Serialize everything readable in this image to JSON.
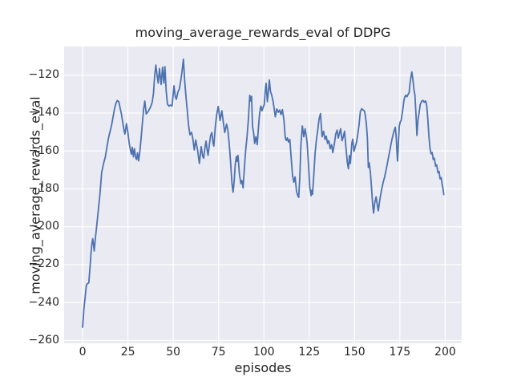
{
  "chart_data": {
    "type": "line",
    "title": "moving_average_rewards_eval of DDPG",
    "xlabel": "episodes",
    "ylabel": "moving_average_rewards_eval",
    "legend_position": "none",
    "grid": true,
    "xlim": [
      -10.2,
      209.1
    ],
    "ylim": [
      -261.5,
      -104.9
    ],
    "x_ticks": [
      0,
      25,
      50,
      75,
      100,
      125,
      150,
      175,
      200
    ],
    "x_tick_labels": [
      "0",
      "25",
      "50",
      "75",
      "100",
      "125",
      "150",
      "175",
      "200"
    ],
    "y_ticks": [
      -260,
      -240,
      -220,
      -200,
      -180,
      -160,
      -140,
      -120
    ],
    "y_tick_labels": [
      "−260",
      "−240",
      "−220",
      "−200",
      "−180",
      "−160",
      "−140",
      "−120"
    ],
    "styles": {
      "axes_background": "#eaeaf2",
      "grid_color": "#ffffff",
      "line_color": "#4c72b0",
      "text_color": "#262626",
      "figure_background": "#ffffff",
      "line_width": 1.8
    },
    "series": [
      {
        "name": "moving_average_rewards_eval",
        "points": [
          [
            0,
            -253
          ],
          [
            0.7,
            -243.5
          ],
          [
            1.3,
            -238
          ],
          [
            2,
            -231.5
          ],
          [
            2.4,
            -230.2
          ],
          [
            3.4,
            -229.6
          ],
          [
            4,
            -222.5
          ],
          [
            4.6,
            -214.5
          ],
          [
            5.1,
            -209
          ],
          [
            5.6,
            -206.3
          ],
          [
            6.4,
            -212.8
          ],
          [
            7.1,
            -205.5
          ],
          [
            8,
            -197.5
          ],
          [
            9,
            -188
          ],
          [
            9.5,
            -183.5
          ],
          [
            10.5,
            -171.5
          ],
          [
            11.5,
            -166.8
          ],
          [
            12.5,
            -163.3
          ],
          [
            13.4,
            -158
          ],
          [
            14.2,
            -153.5
          ],
          [
            15,
            -150.3
          ],
          [
            16,
            -146.3
          ],
          [
            17,
            -141
          ],
          [
            17.7,
            -137.3
          ],
          [
            18.4,
            -134.8
          ],
          [
            19.1,
            -133.4
          ],
          [
            20,
            -134.1
          ],
          [
            20.6,
            -137
          ],
          [
            21.4,
            -140.5
          ],
          [
            22.1,
            -144.7
          ],
          [
            22.8,
            -148.9
          ],
          [
            23.3,
            -151.1
          ],
          [
            24.2,
            -145.6
          ],
          [
            25,
            -150.4
          ],
          [
            25.7,
            -156
          ],
          [
            26.4,
            -159.6
          ],
          [
            26.9,
            -161.7
          ],
          [
            27.4,
            -158.1
          ],
          [
            28,
            -163.1
          ],
          [
            28.6,
            -158.8
          ],
          [
            29.3,
            -163.8
          ],
          [
            29.8,
            -164.5
          ],
          [
            30.3,
            -161
          ],
          [
            30.9,
            -165.2
          ],
          [
            31.5,
            -161
          ],
          [
            32.2,
            -153.9
          ],
          [
            32.9,
            -146.1
          ],
          [
            33.6,
            -138.4
          ],
          [
            34.3,
            -133.7
          ],
          [
            35.1,
            -140.5
          ],
          [
            36.2,
            -139.1
          ],
          [
            37,
            -137.7
          ],
          [
            37.7,
            -136.3
          ],
          [
            38.4,
            -134.2
          ],
          [
            39.1,
            -129.5
          ],
          [
            39.7,
            -121
          ],
          [
            40.4,
            -114.7
          ],
          [
            41,
            -119.5
          ],
          [
            41.7,
            -124.2
          ],
          [
            42.4,
            -116.5
          ],
          [
            43.3,
            -124.9
          ],
          [
            44.1,
            -115.8
          ],
          [
            44.8,
            -124.2
          ],
          [
            45.4,
            -115.5
          ],
          [
            46.1,
            -128.5
          ],
          [
            46.8,
            -135.3
          ],
          [
            47.6,
            -136.3
          ],
          [
            48.5,
            -135.8
          ],
          [
            49.3,
            -136.3
          ],
          [
            50,
            -129.9
          ],
          [
            50.4,
            -125.6
          ],
          [
            51.1,
            -131.3
          ],
          [
            51.7,
            -132.7
          ],
          [
            52.6,
            -128.8
          ],
          [
            53.4,
            -127.1
          ],
          [
            54.2,
            -122.5
          ],
          [
            54.9,
            -117.5
          ],
          [
            55.6,
            -111.6
          ],
          [
            56.3,
            -123
          ],
          [
            57,
            -131.3
          ],
          [
            57.7,
            -138.4
          ],
          [
            58.4,
            -146.1
          ],
          [
            59.2,
            -151.5
          ],
          [
            60.1,
            -150.2
          ],
          [
            60.8,
            -153.5
          ],
          [
            61.6,
            -159.5
          ],
          [
            62.4,
            -154.2
          ],
          [
            63.4,
            -159.5
          ],
          [
            64.4,
            -166.6
          ],
          [
            65.4,
            -157.7
          ],
          [
            66.2,
            -162.8
          ],
          [
            66.8,
            -163.8
          ],
          [
            67.5,
            -158.1
          ],
          [
            68.1,
            -154.8
          ],
          [
            68.8,
            -160.2
          ],
          [
            69.2,
            -162.3
          ],
          [
            69.9,
            -156.7
          ],
          [
            70.6,
            -151.8
          ],
          [
            71.3,
            -150.3
          ],
          [
            72,
            -156
          ],
          [
            72.4,
            -157.4
          ],
          [
            73.1,
            -148.2
          ],
          [
            73.9,
            -141.2
          ],
          [
            74.8,
            -136.5
          ],
          [
            75.8,
            -144
          ],
          [
            76.8,
            -138.8
          ],
          [
            77.5,
            -144
          ],
          [
            78.4,
            -150.3
          ],
          [
            79.4,
            -145.8
          ],
          [
            80.1,
            -148.9
          ],
          [
            80.7,
            -154.6
          ],
          [
            81.3,
            -161.6
          ],
          [
            81.9,
            -170.1
          ],
          [
            82.4,
            -177.2
          ],
          [
            83,
            -181.8
          ],
          [
            83.6,
            -175.8
          ],
          [
            84.2,
            -167
          ],
          [
            84.8,
            -163
          ],
          [
            85.2,
            -165.5
          ],
          [
            85.7,
            -162.3
          ],
          [
            86.5,
            -172.3
          ],
          [
            87.3,
            -177.2
          ],
          [
            87.9,
            -175.6
          ],
          [
            88.5,
            -179.5
          ],
          [
            89.3,
            -168
          ],
          [
            90,
            -159
          ],
          [
            90.7,
            -152.5
          ],
          [
            91.4,
            -144
          ],
          [
            92.2,
            -130.6
          ],
          [
            92.7,
            -133.6
          ],
          [
            93.2,
            -131.2
          ],
          [
            93.7,
            -146.8
          ],
          [
            94.3,
            -150.4
          ],
          [
            94.9,
            -156
          ],
          [
            95.6,
            -152.5
          ],
          [
            96.3,
            -156.7
          ],
          [
            97,
            -147.5
          ],
          [
            97.5,
            -141.5
          ],
          [
            98,
            -137.6
          ],
          [
            98.4,
            -136.3
          ],
          [
            99,
            -138.8
          ],
          [
            99.6,
            -136.9
          ],
          [
            100.2,
            -135.5
          ],
          [
            100.7,
            -128.5
          ],
          [
            101.2,
            -124.3
          ],
          [
            101.9,
            -134
          ],
          [
            102.5,
            -128.3
          ],
          [
            103,
            -122.6
          ],
          [
            103.6,
            -128.5
          ],
          [
            104.3,
            -130.6
          ],
          [
            105,
            -133.5
          ],
          [
            105.7,
            -138
          ],
          [
            106.3,
            -142
          ],
          [
            107.1,
            -137.8
          ],
          [
            108,
            -139.6
          ],
          [
            108.7,
            -138.4
          ],
          [
            109.4,
            -140.8
          ],
          [
            110.2,
            -138.2
          ],
          [
            111,
            -143.3
          ],
          [
            111.8,
            -153.2
          ],
          [
            112.4,
            -154.5
          ],
          [
            112.9,
            -153.1
          ],
          [
            113.6,
            -155.3
          ],
          [
            114.3,
            -153.9
          ],
          [
            115.1,
            -164.5
          ],
          [
            115.8,
            -173
          ],
          [
            116.5,
            -176.5
          ],
          [
            117.2,
            -173.7
          ],
          [
            118,
            -181.4
          ],
          [
            118.7,
            -183.6
          ],
          [
            119.2,
            -184.5
          ],
          [
            119.8,
            -174
          ],
          [
            120.4,
            -157
          ],
          [
            121.2,
            -146.8
          ],
          [
            122,
            -152.5
          ],
          [
            122.7,
            -148.3
          ],
          [
            123.5,
            -153
          ],
          [
            123.9,
            -156.5
          ],
          [
            124.6,
            -167.3
          ],
          [
            125.3,
            -179
          ],
          [
            126,
            -183.6
          ],
          [
            126.4,
            -180.8
          ],
          [
            126.8,
            -182.9
          ],
          [
            127.5,
            -173
          ],
          [
            128.2,
            -161.7
          ],
          [
            128.9,
            -154.6
          ],
          [
            129.7,
            -149
          ],
          [
            130.4,
            -143.3
          ],
          [
            131.2,
            -140.3
          ],
          [
            132.1,
            -152.5
          ],
          [
            132.9,
            -149.6
          ],
          [
            133.7,
            -153.9
          ],
          [
            134.4,
            -152.2
          ],
          [
            135.1,
            -156
          ],
          [
            135.8,
            -154.6
          ],
          [
            136.6,
            -158.8
          ],
          [
            137.3,
            -156.7
          ],
          [
            138,
            -160.9
          ],
          [
            138.9,
            -156
          ],
          [
            139.6,
            -151.1
          ],
          [
            140.4,
            -149
          ],
          [
            141,
            -153.2
          ],
          [
            141.6,
            -151
          ],
          [
            142.3,
            -148.3
          ],
          [
            143.1,
            -154.6
          ],
          [
            143.8,
            -152.5
          ],
          [
            144.5,
            -149.6
          ],
          [
            145.3,
            -158.8
          ],
          [
            146,
            -165.9
          ],
          [
            146.6,
            -169.4
          ],
          [
            147.2,
            -162.4
          ],
          [
            147.7,
            -166.6
          ],
          [
            148.5,
            -156
          ],
          [
            149,
            -153.8
          ],
          [
            149.7,
            -160.2
          ],
          [
            150.4,
            -157.7
          ],
          [
            151.1,
            -155.3
          ],
          [
            151.8,
            -151.1
          ],
          [
            152.5,
            -146.1
          ],
          [
            153.2,
            -139.1
          ],
          [
            154,
            -137.7
          ],
          [
            154.7,
            -138.4
          ],
          [
            155.4,
            -138.8
          ],
          [
            155.8,
            -140.5
          ],
          [
            156.5,
            -145.4
          ],
          [
            157.1,
            -153.5
          ],
          [
            157.6,
            -168.7
          ],
          [
            158.1,
            -166.3
          ],
          [
            158.8,
            -172
          ],
          [
            159.4,
            -180
          ],
          [
            160,
            -188.5
          ],
          [
            160.5,
            -192.8
          ],
          [
            161.2,
            -187
          ],
          [
            161.9,
            -184.2
          ],
          [
            162.5,
            -188.3
          ],
          [
            163.1,
            -191.6
          ],
          [
            163.9,
            -186
          ],
          [
            164.8,
            -181
          ],
          [
            165.8,
            -176.5
          ],
          [
            166.6,
            -173.7
          ],
          [
            167.4,
            -170
          ],
          [
            168.1,
            -166.6
          ],
          [
            168.8,
            -163
          ],
          [
            169.5,
            -159.6
          ],
          [
            170.2,
            -156
          ],
          [
            170.8,
            -153.2
          ],
          [
            171.4,
            -150.8
          ],
          [
            172,
            -148.8
          ],
          [
            172.5,
            -147.5
          ],
          [
            173,
            -153
          ],
          [
            173.4,
            -160.5
          ],
          [
            173.7,
            -165.3
          ],
          [
            174.2,
            -155.3
          ],
          [
            174.7,
            -146.8
          ],
          [
            175.2,
            -144.7
          ],
          [
            175.7,
            -143.9
          ],
          [
            176.2,
            -140.8
          ],
          [
            176.7,
            -137.5
          ],
          [
            177.2,
            -133.5
          ],
          [
            177.7,
            -131.5
          ],
          [
            178.3,
            -130.6
          ],
          [
            178.9,
            -131.4
          ],
          [
            179.5,
            -130.2
          ],
          [
            180.1,
            -129.3
          ],
          [
            180.6,
            -124.5
          ],
          [
            181.1,
            -121
          ],
          [
            181.6,
            -118.3
          ],
          [
            182.2,
            -122.5
          ],
          [
            182.8,
            -127.8
          ],
          [
            183.3,
            -130.6
          ],
          [
            183.9,
            -141
          ],
          [
            184.4,
            -151.8
          ],
          [
            185,
            -143.5
          ],
          [
            185.6,
            -139.8
          ],
          [
            186.2,
            -135.6
          ],
          [
            187,
            -133.8
          ],
          [
            187.7,
            -133.3
          ],
          [
            188.4,
            -134.3
          ],
          [
            189.2,
            -133.6
          ],
          [
            189.8,
            -136
          ],
          [
            190.4,
            -143
          ],
          [
            191,
            -152
          ],
          [
            191.6,
            -158.5
          ],
          [
            192.2,
            -161.5
          ],
          [
            192.8,
            -160.8
          ],
          [
            193.4,
            -164.5
          ],
          [
            194,
            -163.8
          ],
          [
            194.7,
            -168
          ],
          [
            195.3,
            -167.3
          ],
          [
            196,
            -171.5
          ],
          [
            196.6,
            -170.8
          ],
          [
            197.2,
            -174.8
          ],
          [
            197.8,
            -174.1
          ],
          [
            198.3,
            -177.5
          ],
          [
            198.8,
            -180
          ],
          [
            199.2,
            -183
          ]
        ]
      }
    ]
  }
}
